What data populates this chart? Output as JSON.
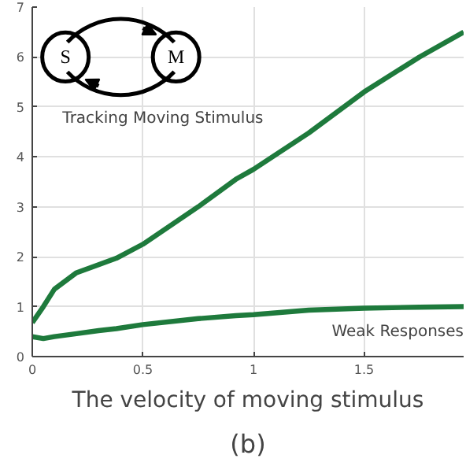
{
  "chart_data": {
    "type": "line",
    "xlabel": "The velocity of moving stimulus",
    "annotations": [
      "S",
      "M",
      "(b)"
    ],
    "x": [
      0,
      0.05,
      0.1,
      0.2,
      0.3,
      0.38,
      0.5,
      0.75,
      0.92,
      1.0,
      1.25,
      1.5,
      1.75,
      1.95
    ],
    "series": [
      {
        "name": "Tracking Moving Stimulus",
        "color": "#1e7a3c",
        "values": [
          0.68,
          1.0,
          1.35,
          1.68,
          1.84,
          1.97,
          2.25,
          3.0,
          3.55,
          3.75,
          4.48,
          5.3,
          6.0,
          6.5
        ]
      },
      {
        "name": "Weak Responses",
        "color": "#1e7a3c",
        "values": [
          0.4,
          0.36,
          0.4,
          0.46,
          0.52,
          0.56,
          0.64,
          0.76,
          0.82,
          0.84,
          0.93,
          0.97,
          0.99,
          1.0
        ]
      }
    ],
    "xlim": [
      0,
      1.95
    ],
    "ylim": [
      0,
      7
    ],
    "xticks": [
      0,
      0.5,
      1,
      1.5
    ],
    "yticks": [
      0,
      1,
      2,
      3,
      4,
      5,
      6,
      7
    ],
    "grid": true,
    "marker": "none",
    "line_style": "solid"
  }
}
